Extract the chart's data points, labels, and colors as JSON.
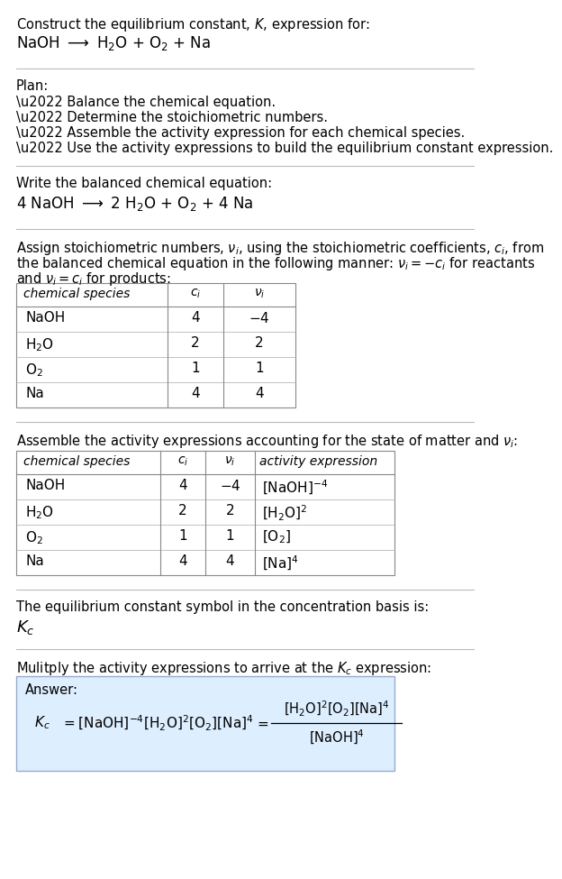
{
  "bg_color": "#ffffff",
  "text_color": "#000000",
  "line_color": "#bbbbbb",
  "table_border_color": "#888888",
  "table_sep_color": "#aaaaaa",
  "answer_box_color": "#ddeeff",
  "answer_box_border": "#99aacc",
  "title_line1": "Construct the equilibrium constant, $K$, expression for:",
  "title_line2": "NaOH $\\longrightarrow$ H$_2$O + O$_2$ + Na",
  "plan_header": "Plan:",
  "plan_items": [
    "\\u2022 Balance the chemical equation.",
    "\\u2022 Determine the stoichiometric numbers.",
    "\\u2022 Assemble the activity expression for each chemical species.",
    "\\u2022 Use the activity expressions to build the equilibrium constant expression."
  ],
  "balanced_header": "Write the balanced chemical equation:",
  "balanced_eq": "4 NaOH $\\longrightarrow$ 2 H$_2$O + O$_2$ + 4 Na",
  "stoich_intro1": "Assign stoichiometric numbers, $\\nu_i$, using the stoichiometric coefficients, $c_i$, from",
  "stoich_intro2": "the balanced chemical equation in the following manner: $\\nu_i = -c_i$ for reactants",
  "stoich_intro3": "and $\\nu_i = c_i$ for products:",
  "table1_col1_header": "chemical species",
  "table1_col2_header": "$c_i$",
  "table1_col3_header": "$\\nu_i$",
  "table1_data": [
    [
      "NaOH",
      "4",
      "$-4$"
    ],
    [
      "H$_2$O",
      "2",
      "2"
    ],
    [
      "O$_2$",
      "1",
      "1"
    ],
    [
      "Na",
      "4",
      "4"
    ]
  ],
  "assemble_intro": "Assemble the activity expressions accounting for the state of matter and $\\nu_i$:",
  "table2_col1_header": "chemical species",
  "table2_col2_header": "$c_i$",
  "table2_col3_header": "$\\nu_i$",
  "table2_col4_header": "activity expression",
  "table2_data": [
    [
      "NaOH",
      "4",
      "$-4$",
      "[NaOH]$^{-4}$"
    ],
    [
      "H$_2$O",
      "2",
      "2",
      "[H$_2$O]$^2$"
    ],
    [
      "O$_2$",
      "1",
      "1",
      "[O$_2$]"
    ],
    [
      "Na",
      "4",
      "4",
      "[Na]$^4$"
    ]
  ],
  "kc_intro": "The equilibrium constant symbol in the concentration basis is:",
  "kc_symbol": "$K_c$",
  "multiply_intro": "Mulitply the activity expressions to arrive at the $K_c$ expression:",
  "answer_label": "Answer:"
}
